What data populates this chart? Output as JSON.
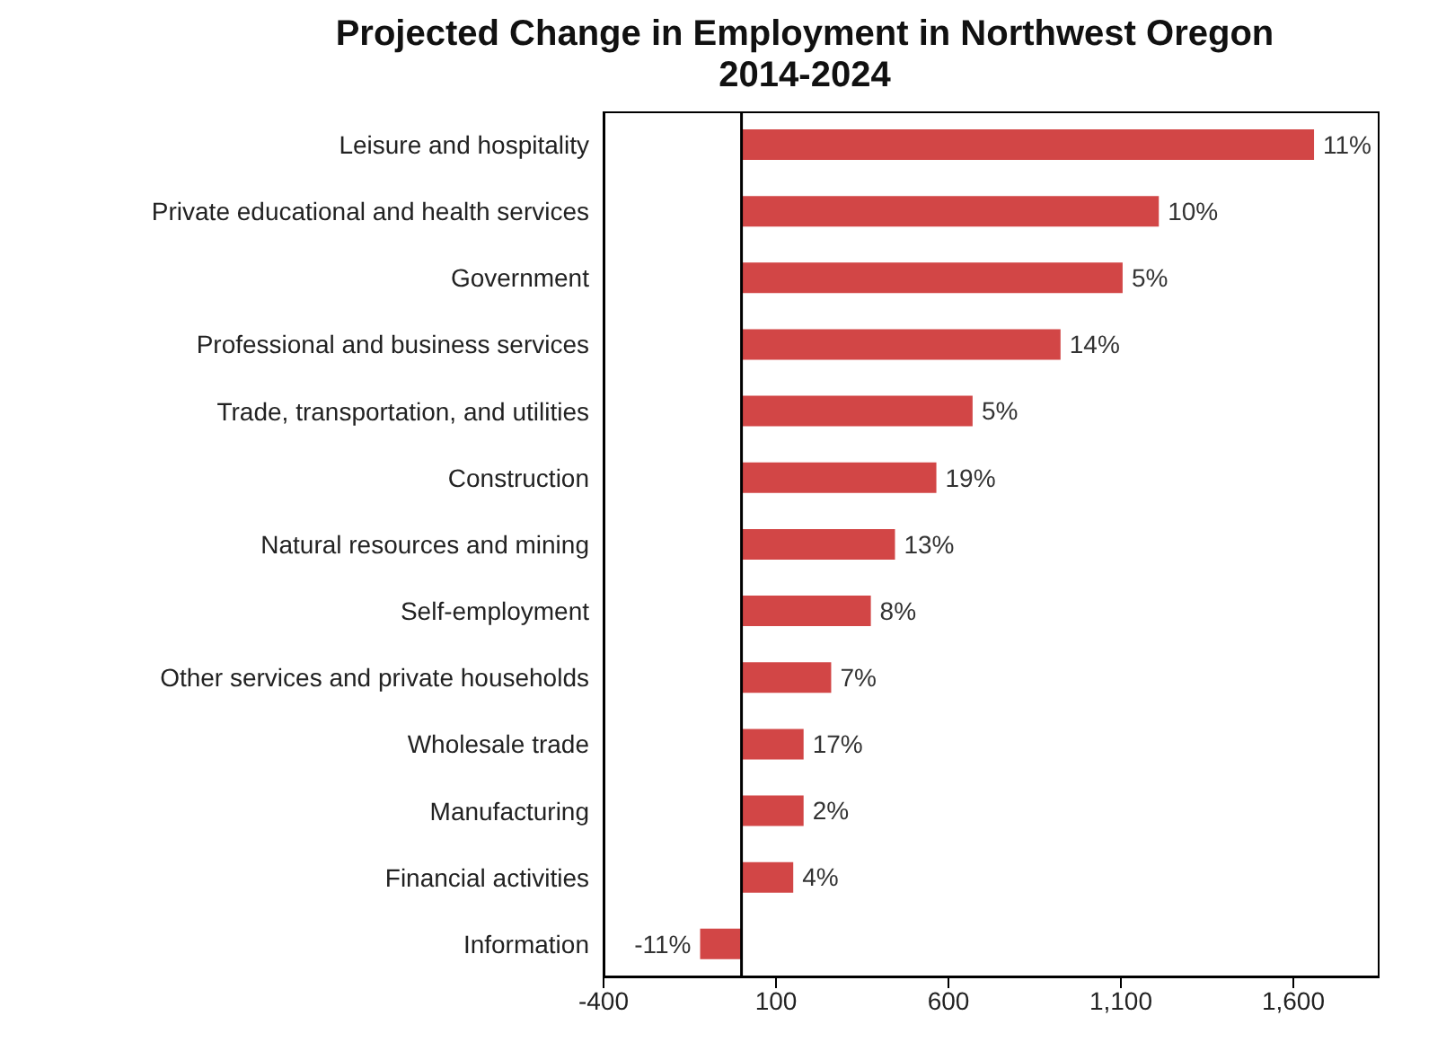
{
  "chart_data": {
    "type": "bar",
    "orientation": "horizontal",
    "title": "Projected Change in Employment in Northwest Oregon",
    "subtitle": "2014-2024",
    "categories": [
      "Leisure and hospitality",
      "Private educational and health services",
      "Government",
      "Professional and business services",
      "Trade, transportation, and utilities",
      "Construction",
      "Natural resources and mining",
      "Self-employment",
      "Other services and private households",
      "Wholesale trade",
      "Manufacturing",
      "Financial activities",
      "Information"
    ],
    "values": [
      1660,
      1210,
      1105,
      925,
      670,
      565,
      445,
      375,
      260,
      180,
      180,
      150,
      -120
    ],
    "annotations": [
      {
        "text": "11%",
        "x": 1660,
        "y": "Leisure and hospitality"
      },
      {
        "text": "10%",
        "x": 1210,
        "y": "Private educational and health services"
      },
      {
        "text": "5%",
        "x": 1105,
        "y": "Government"
      },
      {
        "text": "14%",
        "x": 925,
        "y": "Professional and business services"
      },
      {
        "text": "5%",
        "x": 670,
        "y": "Trade, transportation, and utilities"
      },
      {
        "text": "19%",
        "x": 565,
        "y": "Construction"
      },
      {
        "text": "13%",
        "x": 445,
        "y": "Natural resources and mining"
      },
      {
        "text": "8%",
        "x": 375,
        "y": "Self-employment"
      },
      {
        "text": "7%",
        "x": 260,
        "y": "Other services and private households"
      },
      {
        "text": "17%",
        "x": 180,
        "y": "Wholesale trade"
      },
      {
        "text": "2%",
        "x": 180,
        "y": "Manufacturing"
      },
      {
        "text": "4%",
        "x": 150,
        "y": "Financial activities"
      },
      {
        "text": "-11%",
        "x": -120,
        "y": "Information"
      }
    ],
    "color": "#d24646",
    "xlim": [
      -400,
      1850
    ],
    "xticks": [
      {
        "value": -400,
        "label": "-400"
      },
      {
        "value": 100,
        "label": "100"
      },
      {
        "value": 600,
        "label": "600"
      },
      {
        "value": 1100,
        "label": "1,100"
      },
      {
        "value": 1600,
        "label": "1,600"
      }
    ],
    "ref_lines": [
      {
        "axis": "x",
        "value": 0,
        "color": "#000000"
      }
    ],
    "grid": false,
    "legend": false
  }
}
